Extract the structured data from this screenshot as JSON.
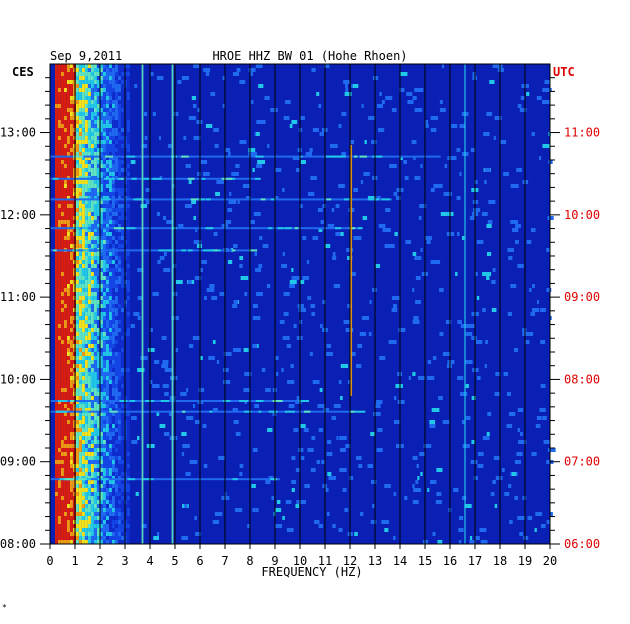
{
  "chart_data": {
    "type": "heatmap",
    "date": "Sep 9,2011",
    "title": "HROE HHZ BW 01 (Hohe Rhoen)",
    "left_tz": "CES",
    "right_tz": "UTC",
    "xlabel": "FREQUENCY (HZ)",
    "xlim": [
      0,
      20
    ],
    "x_ticks": [
      "0",
      "1",
      "2",
      "3",
      "4",
      "5",
      "6",
      "7",
      "8",
      "9",
      "10",
      "11",
      "12",
      "13",
      "14",
      "15",
      "16",
      "17",
      "18",
      "19",
      "20"
    ],
    "y_ticks_left": [
      "13:00",
      "12:00",
      "11:00",
      "10:00",
      "09:00",
      "08:00"
    ],
    "y_ticks_right": [
      "11:00",
      "10:00",
      "09:00",
      "08:00",
      "07:00",
      "06:00"
    ],
    "time_range_ces": [
      "08:00",
      "13:50"
    ],
    "grid": true,
    "colors": {
      "background": "#0a1fb4",
      "low": "#1034d8",
      "mid": "#21c8e8",
      "high": "#f4e21a",
      "peak": "#d81c10",
      "utc": "#e00000",
      "text": "#000000"
    },
    "spectral_lines_hz": [
      3.7,
      4.9,
      12.05,
      16.6
    ]
  },
  "footer_mark": "*"
}
